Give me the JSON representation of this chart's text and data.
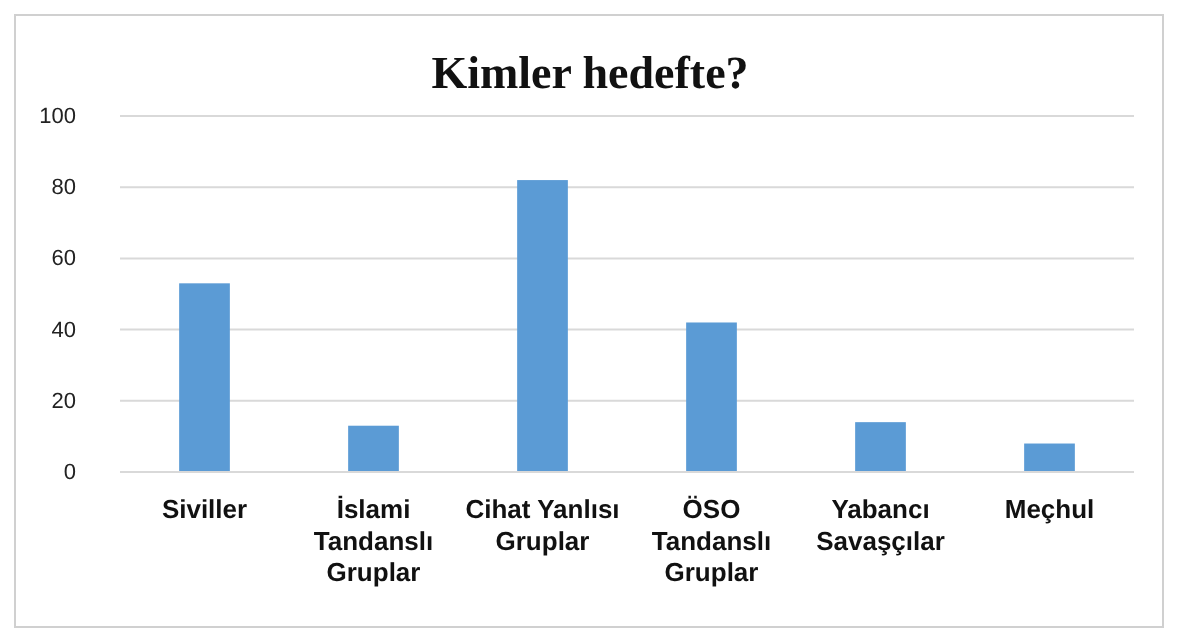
{
  "chart_data": {
    "type": "bar",
    "title": "Kimler hedefte?",
    "categories": [
      "Siviller",
      "İslami Tandanslı Gruplar",
      "Cihat Yanlısı Gruplar",
      "ÖSO Tandanslı Gruplar",
      "Yabancı Savaşçılar",
      "Meçhul"
    ],
    "values": [
      53,
      13,
      82,
      42,
      14,
      8
    ],
    "color": "#5b9bd5",
    "ylim": [
      0,
      100
    ],
    "yticks": [
      0,
      20,
      40,
      60,
      80,
      100
    ],
    "grid": "y"
  }
}
